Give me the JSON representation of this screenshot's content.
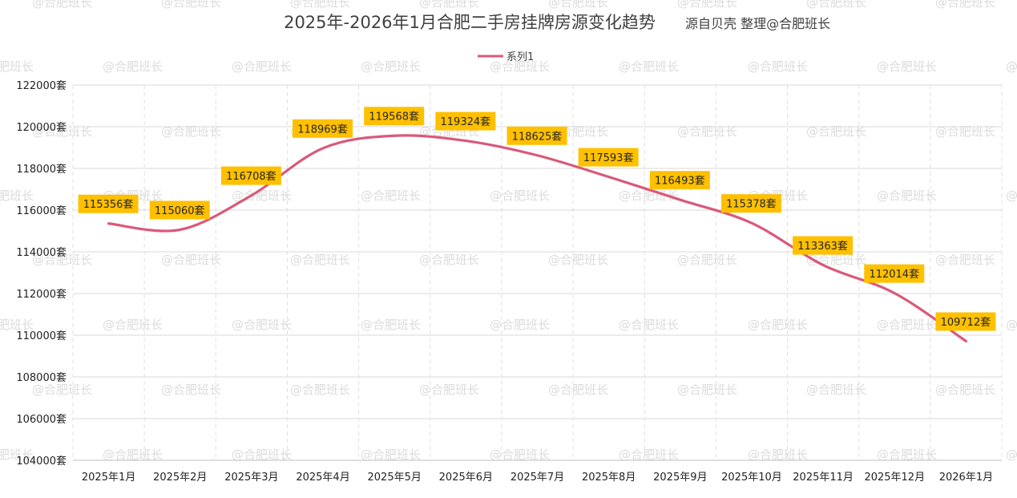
{
  "chart_data": {
    "type": "line",
    "title": "2025年-2026年1月合肥二手房挂牌房源变化趋势",
    "subtitle": "源自贝壳 整理@合肥班长",
    "categories": [
      "2025年1月",
      "2025年2月",
      "2025年3月",
      "2025年4月",
      "2025年5月",
      "2025年6月",
      "2025年7月",
      "2025年8月",
      "2025年9月",
      "2025年10月",
      "2025年11月",
      "2025年12月",
      "2026年1月"
    ],
    "series": [
      {
        "name": "系列1",
        "values": [
          115356,
          115060,
          116708,
          118969,
          119568,
          119324,
          118625,
          117593,
          116493,
          115378,
          113363,
          112014,
          109712
        ]
      }
    ],
    "data_labels": [
      "115356套",
      "115060套",
      "116708套",
      "118969套",
      "119568套",
      "119324套",
      "118625套",
      "117593套",
      "116493套",
      "115378套",
      "113363套",
      "112014套",
      "109712套"
    ],
    "y_ticks": [
      "104000套",
      "106000套",
      "108000套",
      "110000套",
      "112000套",
      "114000套",
      "116000套",
      "118000套",
      "120000套",
      "122000套"
    ],
    "ylim": [
      104000,
      122000
    ],
    "y_step": 2000,
    "grid": true,
    "legend_position": "top",
    "line_color": "#d9597a",
    "label_bg_color": "#ffc000",
    "watermark": "@合肥班长"
  }
}
